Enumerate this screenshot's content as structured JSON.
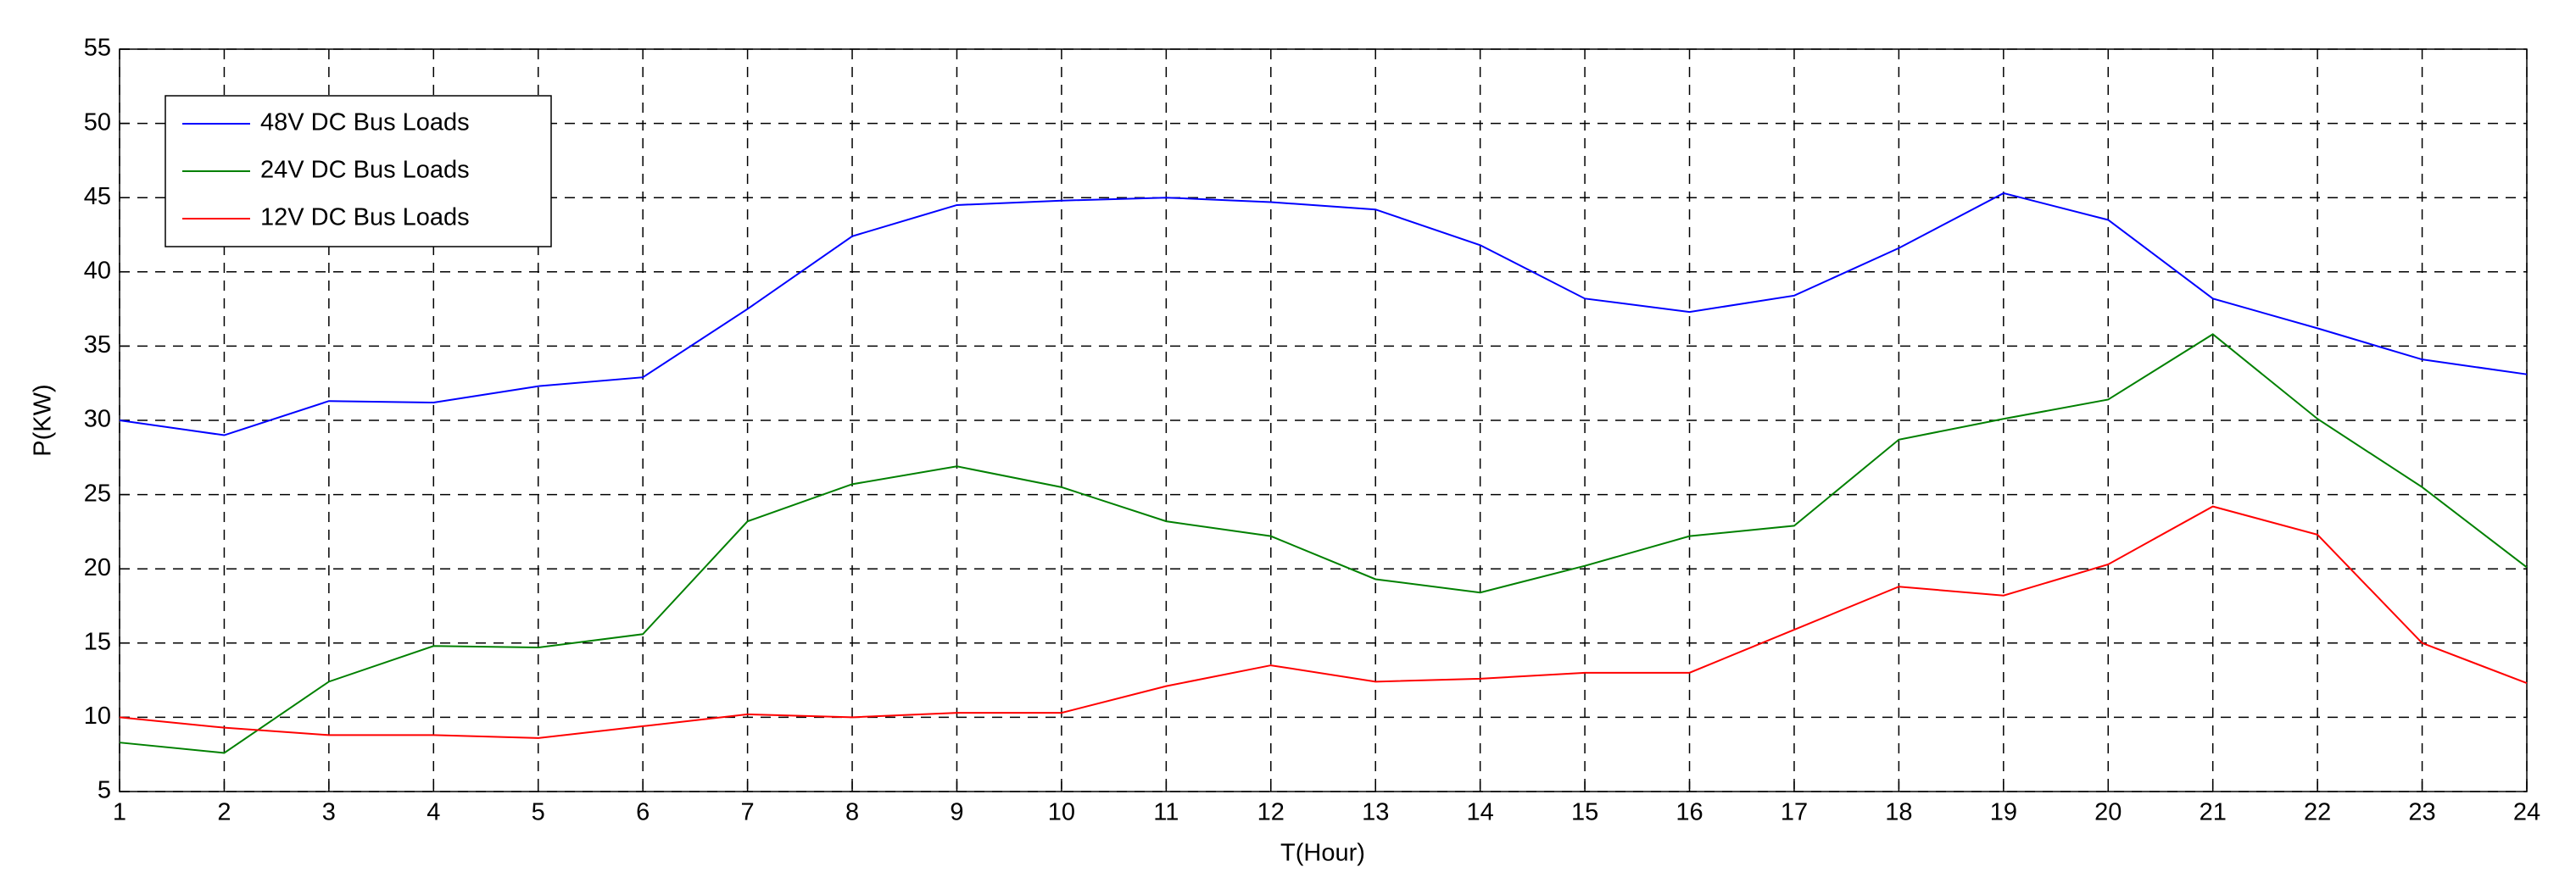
{
  "chart_data": {
    "type": "line",
    "xlabel": "T(Hour)",
    "ylabel": "P(KW)",
    "x": [
      1,
      2,
      3,
      4,
      5,
      6,
      7,
      8,
      9,
      10,
      11,
      12,
      13,
      14,
      15,
      16,
      17,
      18,
      19,
      20,
      21,
      22,
      23,
      24
    ],
    "series": [
      {
        "name": "48V DC Bus Loads",
        "color": "#0000ff",
        "values": [
          30,
          29,
          31.3,
          31.2,
          32.3,
          32.9,
          37.5,
          42.4,
          44.5,
          44.8,
          45,
          44.7,
          44.2,
          41.8,
          38.2,
          37.3,
          38.4,
          41.6,
          45.3,
          43.5,
          38.2,
          36.2,
          34.1,
          33.1
        ]
      },
      {
        "name": "24V DC Bus Loads",
        "color": "#008000",
        "values": [
          8.3,
          7.6,
          12.4,
          14.8,
          14.7,
          15.6,
          23.2,
          25.7,
          26.9,
          25.5,
          23.2,
          22.2,
          19.3,
          18.4,
          20.2,
          22.2,
          22.9,
          28.7,
          30.1,
          31.4,
          35.8,
          30.1,
          25.5,
          20.1
        ]
      },
      {
        "name": "12V DC Bus Loads",
        "color": "#ff0000",
        "values": [
          10,
          9.3,
          8.8,
          8.8,
          8.6,
          9.4,
          10.2,
          10,
          10.3,
          10.3,
          12.1,
          13.5,
          12.4,
          12.6,
          13,
          13,
          15.9,
          18.8,
          18.2,
          20.3,
          24.2,
          22.3,
          15,
          12.3
        ]
      }
    ],
    "xlim": [
      1,
      24
    ],
    "xticks": [
      1,
      2,
      3,
      4,
      5,
      6,
      7,
      8,
      9,
      10,
      11,
      12,
      13,
      14,
      15,
      16,
      17,
      18,
      19,
      20,
      21,
      22,
      23,
      24
    ],
    "ylim": [
      5,
      55
    ],
    "yticks": [
      5,
      10,
      15,
      20,
      25,
      30,
      35,
      40,
      45,
      50,
      55
    ],
    "grid": true,
    "legend": "upper left"
  }
}
